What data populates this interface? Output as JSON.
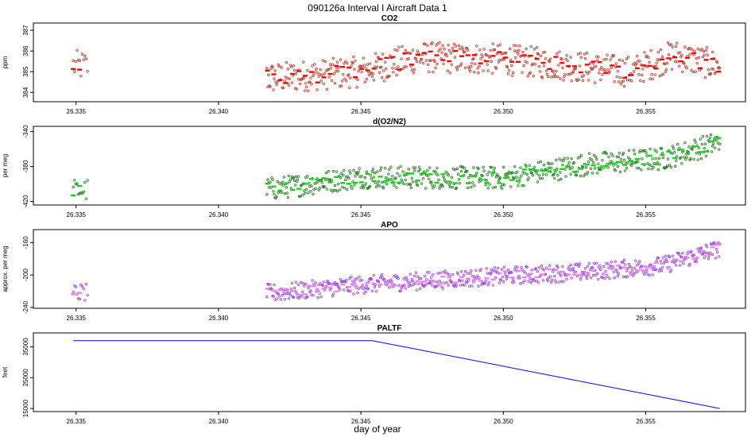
{
  "figure_title": "090126a   Interval I Aircraft Data 1",
  "x_axis_label": "day of year",
  "chart_data": [
    {
      "type": "scatter",
      "title": "CO2",
      "ylabel": "ppm",
      "xlim": [
        26.3335,
        26.3585
      ],
      "ylim": [
        383.55,
        387.35
      ],
      "xticks": [
        26.335,
        26.34,
        26.345,
        26.35,
        26.355
      ],
      "xtick_labels": [
        "26.335",
        "26.340",
        "26.345",
        "26.350",
        "26.355"
      ],
      "yticks": [
        384,
        385,
        386,
        387
      ],
      "ytick_labels": [
        "384",
        "385",
        "386",
        "387"
      ],
      "colors": {
        "dots": "#c0392b",
        "segments": "#ff0000"
      },
      "gap": [
        26.3353,
        26.3417
      ],
      "trend": [
        [
          26.3349,
          385.3
        ],
        [
          26.342,
          384.7
        ],
        [
          26.345,
          385.0
        ],
        [
          26.347,
          385.7
        ],
        [
          26.35,
          385.6
        ],
        [
          26.353,
          385.2
        ],
        [
          26.3545,
          385.0
        ],
        [
          26.356,
          385.8
        ],
        [
          26.3575,
          385.3
        ]
      ],
      "noise": 0.75
    },
    {
      "type": "scatter",
      "title": "d(O2/N2)",
      "ylabel": "per meg",
      "xlim": [
        26.3335,
        26.3585
      ],
      "ylim": [
        -424,
        -334
      ],
      "xticks": [
        26.335,
        26.34,
        26.345,
        26.35,
        26.355
      ],
      "xtick_labels": [
        "26.335",
        "26.340",
        "26.345",
        "26.350",
        "26.355"
      ],
      "yticks": [
        -340,
        -380,
        -420
      ],
      "ytick_labels": [
        "-340",
        "-380",
        "-420"
      ],
      "colors": {
        "dots": "#1e7b1e",
        "segments": "#00e000"
      },
      "gap": [
        26.3353,
        26.3417
      ],
      "trend": [
        [
          26.3349,
          -407
        ],
        [
          26.342,
          -405
        ],
        [
          26.345,
          -392
        ],
        [
          26.35,
          -393
        ],
        [
          26.353,
          -377
        ],
        [
          26.3556,
          -371
        ],
        [
          26.3575,
          -353
        ]
      ],
      "noise": 13
    },
    {
      "type": "scatter",
      "title": "APO",
      "ylabel": "approx. per meg",
      "xlim": [
        26.3335,
        26.3585
      ],
      "ylim": [
        -241,
        -144
      ],
      "xticks": [
        26.335,
        26.34,
        26.345,
        26.35,
        26.355
      ],
      "xtick_labels": [
        "26.335",
        "26.340",
        "26.345",
        "26.350",
        "26.355"
      ],
      "yticks": [
        -160,
        -200,
        -240
      ],
      "ytick_labels": [
        "-160",
        "-200",
        "-240"
      ],
      "colors": {
        "dots": "#a040e8",
        "segments": "#ee82ee"
      },
      "gap": [
        26.3353,
        26.3417
      ],
      "trend": [
        [
          26.3349,
          -222
        ],
        [
          26.342,
          -222
        ],
        [
          26.345,
          -212
        ],
        [
          26.35,
          -201
        ],
        [
          26.353,
          -196
        ],
        [
          26.3556,
          -188
        ],
        [
          26.3575,
          -168
        ]
      ],
      "noise": 11
    },
    {
      "type": "line",
      "title": "PALTF",
      "ylabel": "feet",
      "xlim": [
        26.3335,
        26.3585
      ],
      "ylim": [
        14000,
        39500
      ],
      "xticks": [
        26.335,
        26.34,
        26.345,
        26.35,
        26.355
      ],
      "xtick_labels": [
        "26.335",
        "26.340",
        "26.345",
        "26.350",
        "26.355"
      ],
      "yticks": [
        15000,
        25000,
        35000
      ],
      "ytick_labels": [
        "15000",
        "25000",
        "35000"
      ],
      "colors": {
        "line": "#0000ff"
      },
      "x": [
        26.3349,
        26.3454,
        26.3576
      ],
      "y": [
        37000,
        37000,
        15000
      ]
    }
  ]
}
